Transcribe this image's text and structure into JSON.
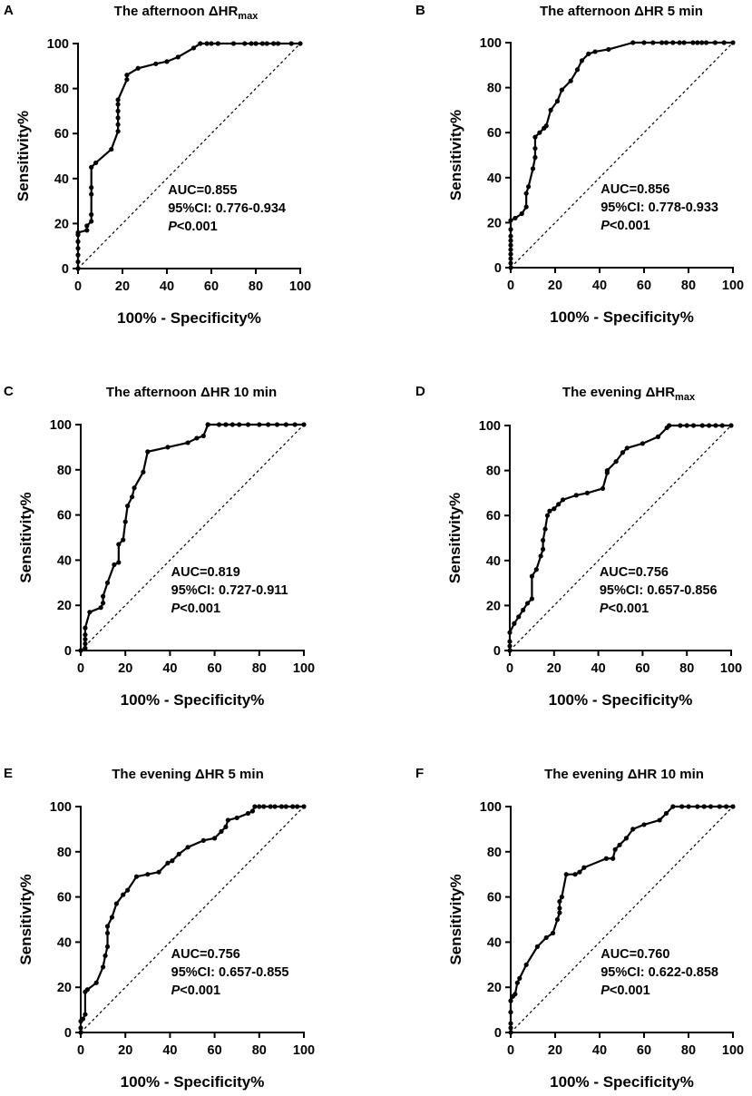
{
  "figure": {
    "panels": [
      {
        "letter": "A",
        "title": "The afternoon ΔHR",
        "title_sub": "max",
        "xlabel": "100% - Specificity%",
        "ylabel": "Sensitivity%",
        "annotation": {
          "auc": "AUC=0.855",
          "ci": "95%CI: 0.776-0.934",
          "p_italic": "P",
          "p_rest": "<0.001"
        }
      },
      {
        "letter": "B",
        "title": "The afternoon ΔHR 5 min",
        "title_sub": "",
        "xlabel": "100% - Specificity%",
        "ylabel": "Sensitivity%",
        "annotation": {
          "auc": "AUC=0.856",
          "ci": "95%CI: 0.778-0.933",
          "p_italic": "P",
          "p_rest": "<0.001"
        }
      },
      {
        "letter": "C",
        "title": "The afternoon ΔHR 10 min",
        "title_sub": "",
        "xlabel": "100% - Specificity%",
        "ylabel": "Sensitivity%",
        "annotation": {
          "auc": "AUC=0.819",
          "ci": "95%CI: 0.727-0.911",
          "p_italic": "P",
          "p_rest": "<0.001"
        }
      },
      {
        "letter": "D",
        "title": "The evening ΔHR",
        "title_sub": "max",
        "xlabel": "100% - Specificity%",
        "ylabel": "Sensitivity%",
        "annotation": {
          "auc": "AUC=0.756",
          "ci": "95%CI: 0.657-0.856",
          "p_italic": "P",
          "p_rest": "<0.001"
        }
      },
      {
        "letter": "E",
        "title": "The evening ΔHR 5 min",
        "title_sub": "",
        "xlabel": "100% - Specificity%",
        "ylabel": "Sensitivity%",
        "annotation": {
          "auc": "AUC=0.756",
          "ci": "95%CI: 0.657-0.855",
          "p_italic": "P",
          "p_rest": "<0.001"
        }
      },
      {
        "letter": "F",
        "title": "The evening ΔHR 10 min",
        "title_sub": "",
        "xlabel": "100% - Specificity%",
        "ylabel": "Sensitivity%",
        "annotation": {
          "auc": "AUC=0.760",
          "ci": "95%CI: 0.622-0.858",
          "p_italic": "P",
          "p_rest": "<0.001"
        }
      }
    ]
  },
  "chart_data": [
    {
      "type": "line",
      "title": "The afternoon ΔHR max",
      "xlabel": "100% - Specificity%",
      "ylabel": "Sensitivity%",
      "xlim": [
        0,
        100
      ],
      "ylim": [
        0,
        100
      ],
      "xticks": [
        "0",
        "20",
        "40",
        "60",
        "80",
        "100"
      ],
      "yticks": [
        "0",
        "20",
        "40",
        "60",
        "80",
        "100"
      ],
      "reference_line": {
        "x": [
          0,
          100
        ],
        "y": [
          0,
          100
        ],
        "style": "dashed"
      },
      "series": [
        {
          "name": "ROC",
          "x": [
            0,
            0,
            0,
            0,
            0,
            0,
            0,
            4,
            4,
            6,
            6,
            6,
            6,
            6,
            8,
            15,
            18,
            18,
            18,
            18,
            18,
            18,
            22,
            22,
            27,
            35,
            40,
            45,
            52,
            55,
            58,
            60,
            63,
            70,
            75,
            78,
            80,
            83,
            85,
            88,
            90,
            96,
            100
          ],
          "y": [
            0,
            3,
            6,
            9,
            12,
            15,
            16,
            17,
            19,
            21,
            24,
            33,
            36,
            45,
            47,
            53,
            61,
            64,
            67,
            70,
            73,
            75,
            84,
            86,
            89,
            91,
            92,
            94,
            98,
            100,
            100,
            100,
            100,
            100,
            100,
            100,
            100,
            100,
            100,
            100,
            100,
            100,
            100
          ]
        }
      ]
    },
    {
      "type": "line",
      "title": "The afternoon ΔHR 5 min",
      "xlabel": "100% - Specificity%",
      "ylabel": "Sensitivity%",
      "xlim": [
        0,
        100
      ],
      "ylim": [
        0,
        100
      ],
      "xticks": [
        "0",
        "20",
        "40",
        "60",
        "80",
        "100"
      ],
      "yticks": [
        "0",
        "20",
        "40",
        "60",
        "80",
        "100"
      ],
      "reference_line": {
        "x": [
          0,
          100
        ],
        "y": [
          0,
          100
        ],
        "style": "dashed"
      },
      "series": [
        {
          "name": "ROC",
          "x": [
            0,
            0,
            0,
            0,
            0,
            0,
            0,
            0,
            0,
            0,
            2,
            5,
            7,
            7,
            8,
            10,
            11,
            11,
            11,
            13,
            15,
            16,
            18,
            21,
            23,
            27,
            30,
            32,
            35,
            38,
            44,
            55,
            60,
            64,
            68,
            70,
            73,
            76,
            78,
            82,
            84,
            86,
            88,
            92,
            96,
            100
          ],
          "y": [
            0,
            2,
            4,
            6,
            8,
            10,
            12,
            14,
            17,
            21,
            22,
            24,
            27,
            33,
            36,
            44,
            49,
            53,
            58,
            60,
            62,
            63,
            70,
            74,
            79,
            83,
            88,
            92,
            95,
            96,
            97,
            100,
            100,
            100,
            100,
            100,
            100,
            100,
            100,
            100,
            100,
            100,
            100,
            100,
            100,
            100
          ]
        }
      ]
    },
    {
      "type": "line",
      "title": "The afternoon ΔHR 10 min",
      "xlabel": "100% - Specificity%",
      "ylabel": "Sensitivity%",
      "xlim": [
        0,
        100
      ],
      "ylim": [
        0,
        100
      ],
      "xticks": [
        "0",
        "20",
        "40",
        "60",
        "80",
        "100"
      ],
      "yticks": [
        "0",
        "20",
        "40",
        "60",
        "80",
        "100"
      ],
      "reference_line": {
        "x": [
          0,
          100
        ],
        "y": [
          0,
          100
        ],
        "style": "dashed"
      },
      "series": [
        {
          "name": "ROC",
          "x": [
            0,
            2,
            2,
            2,
            2,
            2,
            4,
            9,
            10,
            10,
            12,
            15,
            17,
            17,
            19,
            20,
            21,
            23,
            24,
            28,
            30,
            39,
            48,
            52,
            55,
            57,
            57,
            62,
            65,
            68,
            71,
            75,
            80,
            84,
            88,
            92,
            96,
            100
          ],
          "y": [
            0,
            1,
            3,
            5,
            7,
            10,
            17,
            19,
            21,
            24,
            30,
            38,
            39,
            47,
            49,
            57,
            64,
            68,
            72,
            79,
            88,
            90,
            92,
            94,
            95,
            100,
            100,
            100,
            100,
            100,
            100,
            100,
            100,
            100,
            100,
            100,
            100,
            100
          ]
        }
      ]
    },
    {
      "type": "line",
      "title": "The evening ΔHR max",
      "xlabel": "100% - Specificity%",
      "ylabel": "Sensitivity%",
      "xlim": [
        0,
        100
      ],
      "ylim": [
        0,
        100
      ],
      "xticks": [
        "0",
        "20",
        "40",
        "60",
        "80",
        "100"
      ],
      "yticks": [
        "0",
        "20",
        "40",
        "60",
        "80",
        "100"
      ],
      "reference_line": {
        "x": [
          0,
          100
        ],
        "y": [
          0,
          100
        ],
        "style": "dashed"
      },
      "series": [
        {
          "name": "ROC",
          "x": [
            0,
            0,
            0,
            0,
            2,
            4,
            6,
            8,
            10,
            10,
            12,
            14,
            15,
            15,
            16,
            17,
            18,
            20,
            22,
            24,
            30,
            35,
            42,
            44,
            44,
            48,
            51,
            53,
            60,
            67,
            71,
            72,
            77,
            80,
            83,
            87,
            90,
            93,
            96,
            100
          ],
          "y": [
            0,
            2,
            4,
            8,
            12,
            15,
            18,
            21,
            23,
            33,
            36,
            42,
            45,
            49,
            54,
            60,
            62,
            63,
            65,
            67,
            69,
            70,
            72,
            79,
            80,
            84,
            88,
            90,
            92,
            95,
            99,
            100,
            100,
            100,
            100,
            100,
            100,
            100,
            100,
            100
          ]
        }
      ]
    },
    {
      "type": "line",
      "title": "The evening ΔHR 5 min",
      "xlabel": "100% - Specificity%",
      "ylabel": "Sensitivity%",
      "xlim": [
        0,
        100
      ],
      "ylim": [
        0,
        100
      ],
      "xticks": [
        "0",
        "20",
        "40",
        "60",
        "80",
        "100"
      ],
      "yticks": [
        "0",
        "20",
        "40",
        "60",
        "80",
        "100"
      ],
      "reference_line": {
        "x": [
          0,
          100
        ],
        "y": [
          0,
          100
        ],
        "style": "dashed"
      },
      "series": [
        {
          "name": "ROC",
          "x": [
            0,
            0,
            0,
            1,
            2,
            2,
            3,
            7,
            10,
            11,
            12,
            12,
            12,
            14,
            16,
            19,
            21,
            25,
            30,
            35,
            39,
            41,
            44,
            48,
            55,
            60,
            63,
            65,
            66,
            70,
            75,
            77,
            78,
            80,
            82,
            85,
            87,
            90,
            92,
            95,
            97,
            100
          ],
          "y": [
            0,
            2,
            5,
            6,
            8,
            18,
            19,
            22,
            29,
            34,
            38,
            44,
            47,
            51,
            57,
            61,
            63,
            69,
            70,
            71,
            75,
            76,
            79,
            82,
            85,
            86,
            89,
            91,
            94,
            95,
            97,
            98,
            100,
            100,
            100,
            100,
            100,
            100,
            100,
            100,
            100,
            100
          ]
        }
      ]
    },
    {
      "type": "line",
      "title": "The evening ΔHR 10 min",
      "xlabel": "100% - Specificity%",
      "ylabel": "Sensitivity%",
      "xlim": [
        0,
        100
      ],
      "ylim": [
        0,
        100
      ],
      "xticks": [
        "0",
        "20",
        "40",
        "60",
        "80",
        "100"
      ],
      "yticks": [
        "0",
        "20",
        "40",
        "60",
        "80",
        "100"
      ],
      "reference_line": {
        "x": [
          0,
          100
        ],
        "y": [
          0,
          100
        ],
        "style": "dashed"
      },
      "series": [
        {
          "name": "ROC",
          "x": [
            0,
            0,
            0,
            0,
            0,
            1,
            2,
            3,
            4,
            7,
            12,
            16,
            19,
            21,
            22,
            22,
            22,
            23,
            25,
            29,
            31,
            33,
            43,
            46,
            47,
            49,
            52,
            55,
            60,
            67,
            70,
            73,
            77,
            80,
            84,
            87,
            90,
            94,
            97,
            100
          ],
          "y": [
            0,
            2,
            4,
            9,
            14,
            16,
            17,
            22,
            24,
            30,
            38,
            42,
            44,
            50,
            53,
            55,
            58,
            60,
            70,
            70,
            71,
            73,
            77,
            77,
            81,
            83,
            86,
            90,
            92,
            94,
            97,
            100,
            100,
            100,
            100,
            100,
            100,
            100,
            100,
            100
          ]
        }
      ]
    }
  ]
}
